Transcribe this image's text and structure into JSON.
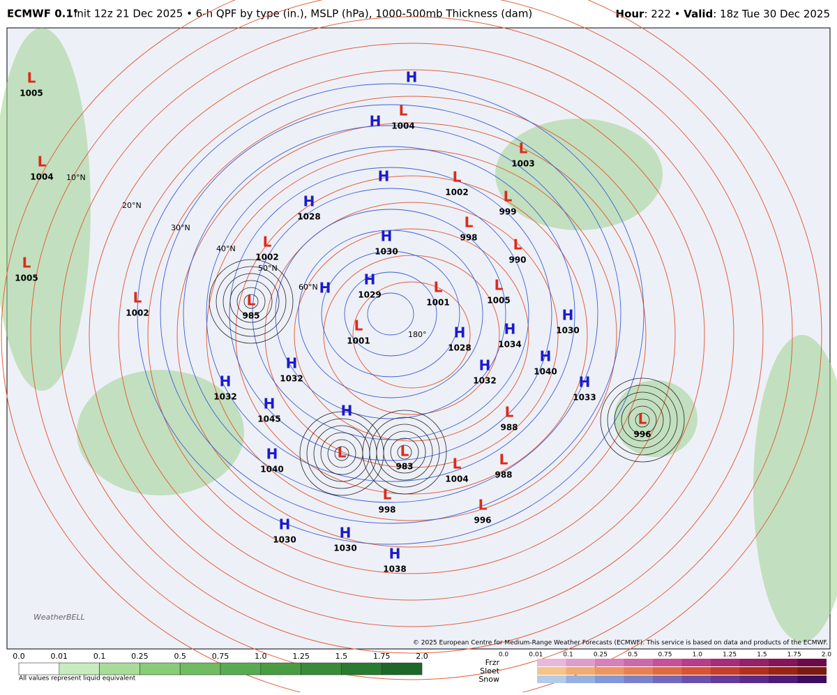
{
  "header": {
    "brand": "ECMWF 0.1°",
    "description": "Init 12z 21 Dec 2025 • 6-h QPF by type (in.), MSLP (hPa), 1000-500mb Thickness (dam)",
    "right": [
      {
        "text": "Hour",
        "bold": true
      },
      {
        "text": ": 222 • ",
        "bold": false
      },
      {
        "text": "Valid",
        "bold": true
      },
      {
        "text": ": 18z Tue 30 Dec 2025",
        "bold": false
      }
    ]
  },
  "map": {
    "latitude_labels": [
      "10°N",
      "20°N",
      "30°N",
      "40°N",
      "50°N",
      "60°N",
      "180°"
    ],
    "centers": [
      {
        "type": "L",
        "value": 1005
      },
      {
        "type": "L",
        "value": 1004
      },
      {
        "type": "L",
        "value": 1005
      },
      {
        "type": "L",
        "value": 1002
      },
      {
        "type": "H"
      },
      {
        "type": "L",
        "value": 1004
      },
      {
        "type": "H"
      },
      {
        "type": "L",
        "value": 1003
      },
      {
        "type": "H"
      },
      {
        "type": "L",
        "value": 1002
      },
      {
        "type": "L",
        "value": 999
      },
      {
        "type": "H",
        "value": 1028
      },
      {
        "type": "L",
        "value": 998
      },
      {
        "type": "L",
        "value": 1002
      },
      {
        "type": "H",
        "value": 1030
      },
      {
        "type": "L",
        "value": 990
      },
      {
        "type": "H",
        "value": 1029
      },
      {
        "type": "H"
      },
      {
        "type": "L",
        "value": 985
      },
      {
        "type": "L",
        "value": 1001
      },
      {
        "type": "L",
        "value": 1005
      },
      {
        "type": "L",
        "value": 1001
      },
      {
        "type": "H",
        "value": 1028
      },
      {
        "type": "H",
        "value": 1034
      },
      {
        "type": "H",
        "value": 1030
      },
      {
        "type": "H",
        "value": 1032
      },
      {
        "type": "H",
        "value": 1032
      },
      {
        "type": "H",
        "value": 1040
      },
      {
        "type": "H",
        "value": 1032
      },
      {
        "type": "H",
        "value": 1033
      },
      {
        "type": "H",
        "value": 1045
      },
      {
        "type": "L",
        "value": 988
      },
      {
        "type": "L",
        "value": 996
      },
      {
        "type": "H"
      },
      {
        "type": "L",
        "value": 983
      },
      {
        "type": "H",
        "value": 1040
      },
      {
        "type": "L"
      },
      {
        "type": "L",
        "value": 1004
      },
      {
        "type": "L",
        "value": 988
      },
      {
        "type": "L",
        "value": 998
      },
      {
        "type": "L",
        "value": 996
      },
      {
        "type": "H",
        "value": 1030
      },
      {
        "type": "H",
        "value": 1030
      },
      {
        "type": "H",
        "value": 1038
      }
    ],
    "copyright": "© 2025 European Centre for Medium-Range Weather Forecasts (ECMWF). This service is based on data and products of the ECMWF.",
    "logo": "WeatherBELL"
  },
  "legend_qpf": {
    "ticks": [
      "0.0",
      "0.01",
      "0.1",
      "0.25",
      "0.5",
      "0.75",
      "1.0",
      "1.25",
      "1.5",
      "1.75",
      "2.0"
    ],
    "colors": [
      "#ffffff",
      "#c8ecc0",
      "#a8dc98",
      "#88cc78",
      "#70bc60",
      "#58ac50",
      "#489c40",
      "#388c38",
      "#287c30",
      "#1c6828"
    ],
    "note": "All values represent liquid equivalent"
  },
  "legend_type": {
    "ticks": [
      "0.0",
      "0.01",
      "0.1",
      "0.25",
      "0.5",
      "0.75",
      "1.0",
      "1.25",
      "1.5",
      "1.75",
      "2.0"
    ],
    "rows": [
      {
        "name": "Frzr",
        "colors": [
          "#e8b8d8",
          "#e09cc8",
          "#d880b8",
          "#d068a8",
          "#c85098",
          "#b83c88",
          "#a82c78",
          "#982068",
          "#881458",
          "#700848"
        ]
      },
      {
        "name": "Sleet",
        "colors": [
          "#f4c488",
          "#f0ac70",
          "#ec9660",
          "#e88050",
          "#e06a40",
          "#d45434",
          "#c44028",
          "#b0301c",
          "#982414",
          "#7c1a10"
        ]
      },
      {
        "name": "Snow",
        "colors": [
          "#b4cce8",
          "#98b0e0",
          "#8498d8",
          "#7c80c8",
          "#7468b8",
          "#6c50a8",
          "#643c98",
          "#5a2c88",
          "#4e1c74",
          "#3e0c5c"
        ]
      }
    ]
  }
}
